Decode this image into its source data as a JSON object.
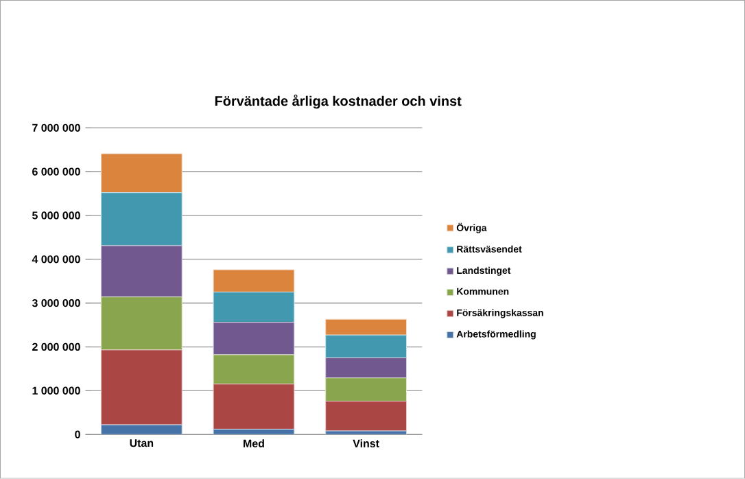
{
  "chart_data": {
    "type": "bar",
    "stacked": true,
    "title": "Förväntade årliga kostnader och vinst",
    "categories": [
      "Utan",
      "Med",
      "Vinst"
    ],
    "series": [
      {
        "name": "Arbetsförmedling",
        "color": "#4573a7",
        "values": [
          220000,
          120000,
          80000
        ]
      },
      {
        "name": "Försäkringskassan",
        "color": "#aa4643",
        "values": [
          1710000,
          1030000,
          680000
        ]
      },
      {
        "name": "Kommunen",
        "color": "#89a54e",
        "values": [
          1210000,
          670000,
          530000
        ]
      },
      {
        "name": "Landstinget",
        "color": "#71588f",
        "values": [
          1170000,
          740000,
          460000
        ]
      },
      {
        "name": "Rättsväsendet",
        "color": "#4198af",
        "values": [
          1210000,
          690000,
          520000
        ]
      },
      {
        "name": "Övriga",
        "color": "#db843d",
        "values": [
          890000,
          510000,
          360000
        ]
      }
    ],
    "ylim": [
      0,
      7000000
    ],
    "yticks": [
      0,
      {
        "value": 1000000,
        "label": "1 000 000"
      },
      {
        "value": 2000000,
        "label": "2 000 000"
      },
      {
        "value": 3000000,
        "label": "3 000 000"
      },
      {
        "value": 4000000,
        "label": "4 000 000"
      },
      {
        "value": 5000000,
        "label": "5 000 000"
      },
      {
        "value": 6000000,
        "label": "6 000 000"
      },
      {
        "value": 7000000,
        "label": "7 000 000"
      }
    ],
    "grid": "y",
    "legend": "right"
  }
}
